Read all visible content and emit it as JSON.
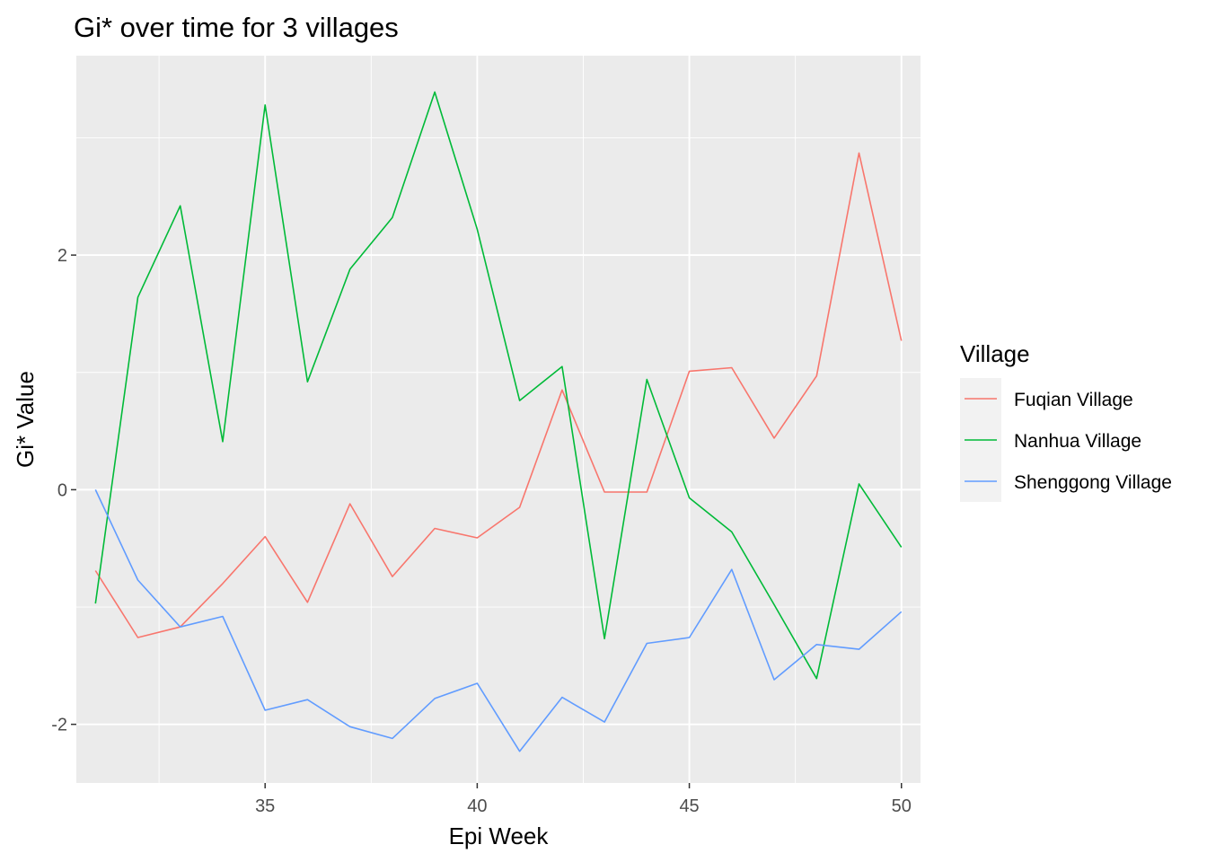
{
  "chart_data": {
    "type": "line",
    "title": "Gi* over time for 3 villages",
    "xlabel": "Epi Week",
    "ylabel": "Gi* Value",
    "x": [
      31,
      32,
      33,
      34,
      35,
      36,
      37,
      38,
      39,
      40,
      41,
      42,
      43,
      44,
      45,
      46,
      47,
      48,
      49,
      50
    ],
    "xlim": [
      30.55,
      50.45
    ],
    "ylim": [
      -2.5,
      3.7
    ],
    "x_ticks": [
      35,
      40,
      45,
      50
    ],
    "x_tick_labels": [
      "35",
      "40",
      "45",
      "50"
    ],
    "y_ticks": [
      -2,
      0,
      2
    ],
    "y_tick_labels": [
      "-2",
      "0",
      "2"
    ],
    "grid": true,
    "legend": {
      "title": "Village",
      "position": "right"
    },
    "series": [
      {
        "name": "Fuqian Village",
        "color": "#F8766D",
        "values": [
          -0.69,
          -1.26,
          -1.17,
          -0.8,
          -0.4,
          -0.96,
          -0.12,
          -0.74,
          -0.33,
          -0.41,
          -0.15,
          0.85,
          -0.02,
          -0.02,
          1.01,
          1.04,
          0.44,
          0.97,
          2.87,
          1.27
        ]
      },
      {
        "name": "Nanhua Village",
        "color": "#00BA38",
        "values": [
          -0.97,
          1.64,
          2.42,
          0.41,
          3.28,
          0.92,
          1.88,
          2.32,
          3.39,
          2.22,
          0.76,
          1.05,
          -1.27,
          0.94,
          -0.07,
          -0.36,
          -0.98,
          -1.61,
          0.05,
          -0.49
        ]
      },
      {
        "name": "Shenggong Village",
        "color": "#619CFF",
        "values": [
          0.0,
          -0.77,
          -1.17,
          -1.08,
          -1.88,
          -1.79,
          -2.02,
          -2.12,
          -1.78,
          -1.65,
          -2.23,
          -1.77,
          -1.98,
          -1.31,
          -1.26,
          -0.68,
          -1.62,
          -1.32,
          -1.36,
          -1.04
        ]
      }
    ]
  }
}
